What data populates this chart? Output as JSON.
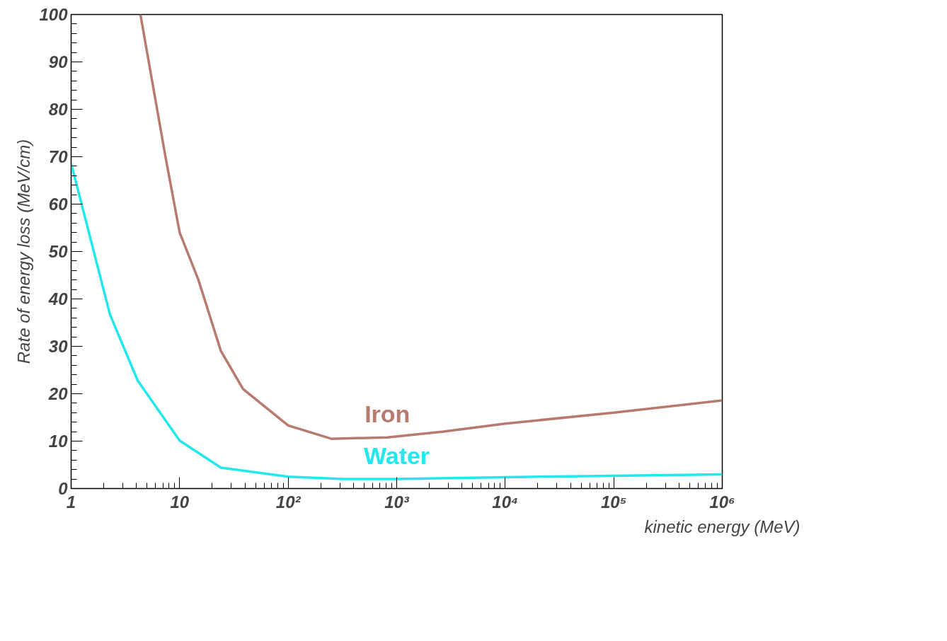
{
  "chart_data": {
    "type": "line",
    "xlabel": "kinetic energy (MeV)",
    "ylabel": "Rate of energy loss (MeV/cm)",
    "log": "x",
    "xlim": [
      1,
      1000000
    ],
    "ylim": [
      0,
      100
    ],
    "xticks": [
      1,
      10,
      {
        "value": 100,
        "label": "10²"
      },
      {
        "value": 1000,
        "label": "10³"
      },
      {
        "value": 10000,
        "label": "10⁴"
      },
      {
        "value": 100000,
        "label": "10⁵"
      },
      {
        "value": 1000000,
        "label": "10⁶"
      }
    ],
    "yticks": [
      0,
      10,
      20,
      30,
      40,
      50,
      60,
      70,
      80,
      90,
      100
    ],
    "grid": false,
    "marker": "none",
    "line_style": "solid",
    "series": [
      {
        "name": "Iron",
        "color": "#b87a6e",
        "x": [
          4.35,
          7.4,
          10,
          14.9,
          24,
          38.4,
          100,
          250,
          820,
          2700,
          10000,
          100000,
          1000000
        ],
        "values": [
          100,
          70,
          54,
          44,
          29,
          21,
          13.3,
          10.5,
          10.8,
          12,
          13.7,
          16,
          18.6
        ]
      },
      {
        "name": "Water",
        "color": "#22e8ee",
        "x": [
          1,
          2.28,
          4.1,
          10,
          24,
          100,
          320,
          1000,
          10000,
          100000,
          1000000
        ],
        "values": [
          68.6,
          36.7,
          22.8,
          10.1,
          4.4,
          2.5,
          2.0,
          2.0,
          2.4,
          2.7,
          3.0
        ]
      }
    ]
  }
}
